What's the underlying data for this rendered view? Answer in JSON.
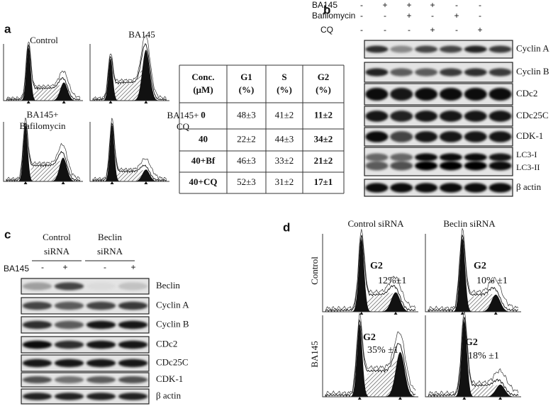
{
  "panel_a": {
    "label": "a",
    "histograms": [
      {
        "title_lines": [
          "Control"
        ]
      },
      {
        "title_lines": [
          "BA145"
        ]
      },
      {
        "title_lines": [
          "BA145+",
          "Bafilomycin"
        ]
      },
      {
        "title_lines": [
          "BA145+",
          "CQ"
        ]
      }
    ],
    "table": {
      "header": [
        [
          "Conc.",
          "(μM)"
        ],
        [
          "G1",
          "(%)"
        ],
        [
          "S",
          "(%)"
        ],
        [
          "G2",
          "(%)"
        ]
      ],
      "rows": [
        [
          "0",
          "48±3",
          "41±2",
          "11±2"
        ],
        [
          "40",
          "22±2",
          "44±3",
          "34±2"
        ],
        [
          "40+Bf",
          "46±3",
          "33±2",
          "21±2"
        ],
        [
          "40+CQ",
          "52±3",
          "31±2",
          "17±1"
        ]
      ]
    }
  },
  "panel_b": {
    "label": "b",
    "treatments": [
      {
        "name": "BA145",
        "signs": [
          "-",
          "+",
          "+",
          "+",
          "-",
          "-"
        ]
      },
      {
        "name": "Bafilomycin",
        "signs": [
          "-",
          "-",
          "+",
          "-",
          "+",
          "-"
        ]
      },
      {
        "name": "CQ",
        "signs": [
          "-",
          "-",
          "-",
          "+",
          "-",
          "+"
        ]
      }
    ],
    "blots": [
      [
        "Cyclin A"
      ],
      [
        "Cyclin B"
      ],
      [
        "CDc2"
      ],
      [
        "CDc25C"
      ],
      [
        "CDK-1"
      ],
      [
        "LC3-I",
        "LC3-II"
      ],
      [
        "β actin"
      ]
    ]
  },
  "panel_c": {
    "label": "c",
    "groups": [
      [
        "Control",
        "siRNA"
      ],
      [
        "Beclin",
        "siRNA"
      ]
    ],
    "treatment": {
      "name": "BA145",
      "signs": [
        "-",
        "+",
        "-",
        "+"
      ]
    },
    "blots": [
      "Beclin",
      "Cyclin A",
      "Cyclin B",
      "CDc2",
      "CDc25C",
      "CDK-1",
      "β actin"
    ]
  },
  "panel_d": {
    "label": "d",
    "columns": [
      "Control siRNA",
      "Beclin siRNA"
    ],
    "rows": [
      "Control",
      "BA145"
    ],
    "histograms": [
      {
        "phase": "G2",
        "value": "12%±1"
      },
      {
        "phase": "G2",
        "value": "10% ±1"
      },
      {
        "phase": "G2",
        "value": "35% ±1"
      },
      {
        "phase": "G2",
        "value": "18% ±1"
      }
    ]
  }
}
